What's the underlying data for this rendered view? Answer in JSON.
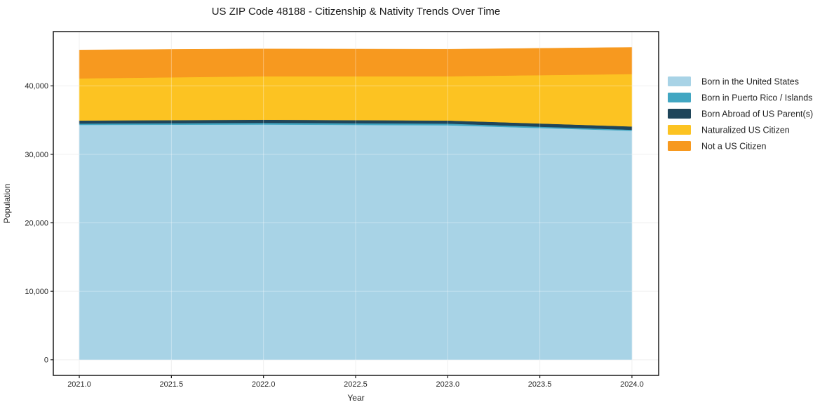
{
  "title": "US ZIP Code 48188 - Citizenship & Nativity Trends Over Time",
  "chart_data": {
    "type": "area",
    "stacked": true,
    "title": "US ZIP Code 48188 - Citizenship & Nativity Trends Over Time",
    "xlabel": "Year",
    "ylabel": "Population",
    "x": [
      2021,
      2022,
      2023,
      2024
    ],
    "series": [
      {
        "name": "Born in the United States",
        "color": "#a8d3e6",
        "values": [
          34300,
          34350,
          34250,
          33450
        ]
      },
      {
        "name": "Born in Puerto Rico / Islands",
        "color": "#41a6c2",
        "values": [
          200,
          250,
          250,
          150
        ]
      },
      {
        "name": "Born Abroad of US Parent(s)",
        "color": "#1f455a",
        "values": [
          450,
          450,
          450,
          480
        ]
      },
      {
        "name": "Naturalized US Citizen",
        "color": "#fcc322",
        "values": [
          6150,
          6350,
          6450,
          7650
        ]
      },
      {
        "name": "Not a US Citizen",
        "color": "#f7991f",
        "values": [
          4150,
          4000,
          3950,
          3900
        ]
      }
    ],
    "x_ticks": [
      "2021.0",
      "2021.5",
      "2022.0",
      "2022.5",
      "2023.0",
      "2023.5",
      "2024.0"
    ],
    "x_tick_values": [
      2021,
      2021.5,
      2022,
      2022.5,
      2023,
      2023.5,
      2024
    ],
    "y_ticks": [
      "0",
      "10,000",
      "20,000",
      "30,000",
      "40,000"
    ],
    "y_tick_values": [
      0,
      10000,
      20000,
      30000,
      40000
    ],
    "xlim": [
      2020.859,
      2024.145
    ],
    "ylim": [
      -2282,
      47932
    ],
    "grid": true,
    "legend_position": "right"
  }
}
